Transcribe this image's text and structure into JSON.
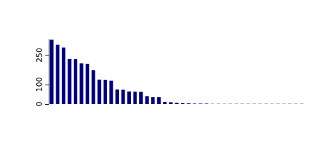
{
  "chart_data": {
    "type": "bar",
    "categories": [
      null,
      null,
      null,
      null,
      null,
      null,
      null,
      null,
      null,
      null,
      null,
      null,
      null,
      null,
      null,
      null,
      null,
      null,
      null,
      null,
      null,
      null,
      null,
      null,
      null,
      null,
      null,
      null,
      null,
      null,
      null,
      null,
      null,
      null,
      null,
      null,
      null,
      null,
      null,
      null,
      null,
      null,
      null
    ],
    "values": [
      329,
      303,
      289,
      231,
      230,
      208,
      206,
      173,
      125,
      124,
      119,
      74,
      73,
      64,
      63,
      62,
      40,
      35,
      35,
      11,
      9,
      6,
      4,
      3,
      2,
      2,
      2,
      1,
      1,
      1,
      1,
      1,
      1,
      1,
      1,
      1,
      1,
      1,
      1,
      1,
      1,
      1,
      1
    ],
    "color": "#000080",
    "ylim": [
      0,
      330
    ],
    "yticks": [
      0,
      100,
      250
    ],
    "grid": false,
    "tick_labels": "y"
  }
}
